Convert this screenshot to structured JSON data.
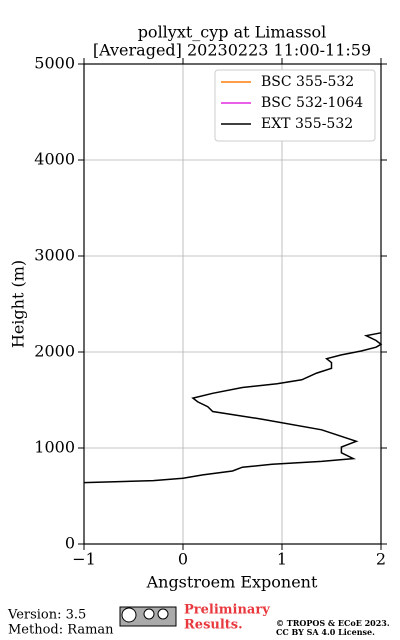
{
  "chart_data": {
    "type": "line",
    "title": [
      "pollyxt_cyp at Limassol",
      "[Averaged] 20230223 11:00-11:59"
    ],
    "x_label": "Angstroem Exponent",
    "y_label": "Height (m)",
    "xlim": [
      -1,
      2
    ],
    "ylim": [
      0,
      5000
    ],
    "xticks": [
      {
        "value": -1,
        "label": "−1"
      },
      0,
      1,
      2
    ],
    "yticks": [
      0,
      1000,
      2000,
      3000,
      4000,
      5000
    ],
    "grid": true,
    "legend": "upper right",
    "series": [
      {
        "name": "BSC 355-532",
        "color": "#ff7f0e",
        "x": [],
        "y": []
      },
      {
        "name": "BSC 532-1064",
        "color": "#e42ae4",
        "x": [],
        "y": []
      },
      {
        "name": "EXT 355-532",
        "color": "#000000",
        "x": [
          -1,
          -0.3,
          0,
          0.2,
          0.5,
          0.6,
          0.9,
          1.4,
          1.72,
          1.6,
          1.6,
          1.75,
          1.4,
          0.8,
          0.3,
          0.25,
          0.15,
          0.1,
          0.3,
          0.6,
          0.95,
          1.2,
          1.35,
          1.5,
          1.5,
          1.45,
          1.6,
          1.8,
          1.95,
          2.0,
          1.95,
          1.85,
          2.0
        ],
        "y": [
          640,
          660,
          685,
          720,
          760,
          800,
          830,
          860,
          890,
          950,
          1010,
          1070,
          1190,
          1300,
          1380,
          1430,
          1480,
          1520,
          1570,
          1630,
          1670,
          1710,
          1780,
          1830,
          1890,
          1930,
          1970,
          2010,
          2050,
          2080,
          2120,
          2170,
          2200
        ]
      }
    ]
  },
  "footer": {
    "version": "Version: 3.5",
    "method": "Method: Raman",
    "preliminary": [
      "Preliminary",
      "Results."
    ],
    "license": [
      "© TROPOS & ECoE 2023.",
      "CC BY SA 4.0 License."
    ]
  }
}
